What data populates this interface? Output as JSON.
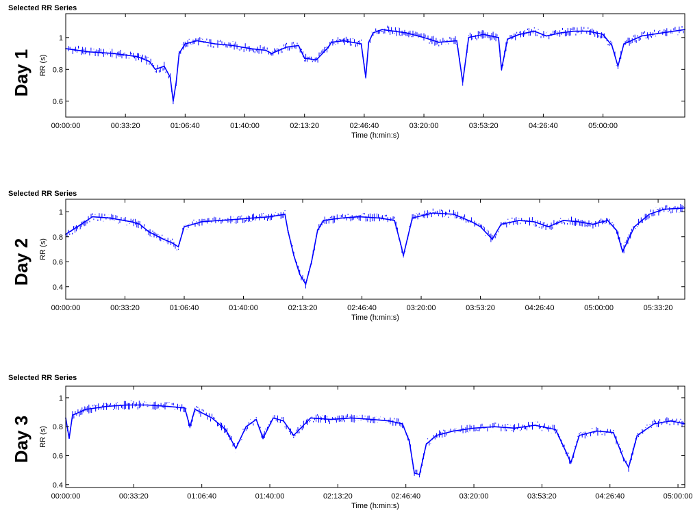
{
  "colors": {
    "series": "#0000ff",
    "axis": "#000000",
    "background": "#ffffff"
  },
  "chart_data": [
    {
      "type": "line",
      "title": "Selected RR Series",
      "side_label": "Day 1",
      "xlabel": "Time (h:min:s)",
      "ylabel": "RR (s)",
      "xlim_seconds": [
        0,
        20740
      ],
      "ylim": [
        0.5,
        1.15
      ],
      "x_tick_seconds": [
        0,
        2000,
        4000,
        6000,
        8000,
        10000,
        12000,
        14000,
        16000,
        18000
      ],
      "x_tick_labels": [
        "00:00:00",
        "00:33:20",
        "01:06:40",
        "01:40:00",
        "02:13:20",
        "02:46:40",
        "03:20:00",
        "03:53:20",
        "04:26:40",
        "05:00:00"
      ],
      "y_ticks": [
        0.6,
        0.8,
        1.0
      ],
      "y_tick_labels": [
        "0.6",
        "0.8",
        "1"
      ],
      "grid": false,
      "series": [
        {
          "color": "#0000ff",
          "x_seconds": [
            0,
            800,
            1600,
            2400,
            2800,
            3000,
            3300,
            3500,
            3600,
            3700,
            3800,
            4000,
            4400,
            5000,
            5600,
            6200,
            6700,
            6900,
            7400,
            7800,
            8000,
            8400,
            8800,
            8900,
            9300,
            9900,
            10050,
            10150,
            10300,
            10600,
            11000,
            11400,
            12000,
            12500,
            13100,
            13300,
            13500,
            14000,
            14500,
            14600,
            14800,
            15200,
            15700,
            16100,
            16600,
            17000,
            17500,
            18000,
            18300,
            18500,
            18700,
            19300,
            20000,
            20740
          ],
          "values": [
            0.93,
            0.91,
            0.9,
            0.88,
            0.85,
            0.8,
            0.82,
            0.75,
            0.6,
            0.72,
            0.9,
            0.96,
            0.98,
            0.96,
            0.95,
            0.93,
            0.92,
            0.9,
            0.94,
            0.95,
            0.87,
            0.86,
            0.94,
            0.97,
            0.98,
            0.96,
            0.75,
            0.97,
            1.03,
            1.05,
            1.04,
            1.03,
            1.0,
            0.97,
            0.98,
            0.72,
            1.0,
            1.02,
            1.0,
            0.8,
            0.99,
            1.02,
            1.04,
            1.01,
            1.03,
            1.04,
            1.04,
            1.02,
            0.95,
            0.82,
            0.96,
            1.01,
            1.03,
            1.05
          ]
        }
      ]
    },
    {
      "type": "line",
      "title": "Selected RR Series",
      "side_label": "Day 2",
      "xlabel": "Time (h:min:s)",
      "ylabel": "RR (s)",
      "xlim_seconds": [
        0,
        20900
      ],
      "ylim": [
        0.3,
        1.1
      ],
      "x_tick_seconds": [
        0,
        2000,
        4000,
        6000,
        8000,
        10000,
        12000,
        14000,
        16000,
        18000,
        20000
      ],
      "x_tick_labels": [
        "00:00:00",
        "00:33:20",
        "01:06:40",
        "01:40:00",
        "02:13:20",
        "02:46:40",
        "03:20:00",
        "03:53:20",
        "04:26:40",
        "05:00:00",
        "05:33:20"
      ],
      "y_ticks": [
        0.4,
        0.6,
        0.8,
        1.0
      ],
      "y_tick_labels": [
        "0.4",
        "0.6",
        "0.8",
        "1"
      ],
      "grid": false,
      "series": [
        {
          "color": "#0000ff",
          "x_seconds": [
            0,
            400,
            900,
            1500,
            2200,
            2500,
            2800,
            3300,
            3600,
            3800,
            4000,
            4600,
            5200,
            5800,
            6300,
            6900,
            7400,
            7500,
            7700,
            7900,
            8100,
            8300,
            8500,
            8700,
            9300,
            9900,
            10600,
            11100,
            11300,
            11400,
            11700,
            12400,
            13100,
            13700,
            14000,
            14400,
            14700,
            15300,
            15800,
            16300,
            16800,
            17300,
            17800,
            18300,
            18600,
            18800,
            19200,
            19700,
            20200,
            20900
          ],
          "values": [
            0.82,
            0.88,
            0.96,
            0.95,
            0.92,
            0.9,
            0.84,
            0.78,
            0.75,
            0.72,
            0.88,
            0.92,
            0.93,
            0.94,
            0.95,
            0.96,
            0.98,
            0.85,
            0.65,
            0.5,
            0.42,
            0.6,
            0.85,
            0.93,
            0.95,
            0.96,
            0.95,
            0.93,
            0.75,
            0.65,
            0.95,
            0.99,
            0.98,
            0.92,
            0.88,
            0.78,
            0.9,
            0.93,
            0.92,
            0.88,
            0.93,
            0.92,
            0.9,
            0.93,
            0.85,
            0.68,
            0.88,
            0.98,
            1.02,
            1.03
          ]
        }
      ]
    },
    {
      "type": "line",
      "title": "Selected RR Series",
      "side_label": "Day 3",
      "xlabel": "Time (h:min:s)",
      "ylabel": "RR (s)",
      "xlim_seconds": [
        0,
        18200
      ],
      "ylim": [
        0.38,
        1.08
      ],
      "x_tick_seconds": [
        0,
        2000,
        4000,
        6000,
        8000,
        10000,
        12000,
        14000,
        16000,
        18000
      ],
      "x_tick_labels": [
        "00:00:00",
        "00:33:20",
        "01:06:40",
        "01:40:00",
        "02:13:20",
        "02:46:40",
        "03:20:00",
        "03:53:20",
        "04:26:40",
        "05:00:00"
      ],
      "y_ticks": [
        0.4,
        0.6,
        0.8,
        1.0
      ],
      "y_tick_labels": [
        "0.4",
        "0.6",
        "0.8",
        "1"
      ],
      "grid": false,
      "series": [
        {
          "color": "#0000ff",
          "x_seconds": [
            0,
            100,
            200,
            600,
            1200,
            1800,
            2400,
            3000,
            3500,
            3650,
            3800,
            4300,
            4700,
            5000,
            5300,
            5600,
            5800,
            6100,
            6400,
            6700,
            7200,
            7800,
            8400,
            9000,
            9500,
            9900,
            10100,
            10250,
            10400,
            10600,
            10900,
            11400,
            12000,
            12600,
            13200,
            13800,
            14400,
            14700,
            14850,
            15100,
            15600,
            16100,
            16400,
            16550,
            16800,
            17300,
            17800,
            18200
          ],
          "values": [
            0.86,
            0.72,
            0.88,
            0.92,
            0.94,
            0.95,
            0.95,
            0.94,
            0.93,
            0.8,
            0.92,
            0.86,
            0.78,
            0.65,
            0.8,
            0.85,
            0.72,
            0.86,
            0.84,
            0.74,
            0.86,
            0.85,
            0.86,
            0.85,
            0.84,
            0.82,
            0.7,
            0.48,
            0.47,
            0.68,
            0.74,
            0.77,
            0.79,
            0.8,
            0.79,
            0.81,
            0.78,
            0.63,
            0.55,
            0.74,
            0.77,
            0.76,
            0.58,
            0.52,
            0.74,
            0.82,
            0.84,
            0.82
          ]
        }
      ]
    }
  ]
}
